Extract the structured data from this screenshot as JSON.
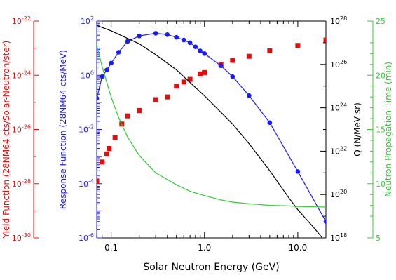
{
  "chart_data": {
    "type": "scatter",
    "xlabel": "Solar Neutron Energy (GeV)",
    "x_axis": {
      "scale": "log",
      "range": [
        0.07,
        20
      ],
      "tick_labels": [
        {
          "value": 0.1,
          "label": "0.1"
        },
        {
          "value": 1.0,
          "label": "1.0"
        },
        {
          "value": 10.0,
          "label": "10.0"
        }
      ]
    },
    "axes": {
      "yield": {
        "label": "Yield Function (28NM64 cts/Solar-Neutron/ster)",
        "scale": "log",
        "range_exp": [
          -30,
          -22
        ],
        "ticks": [
          {
            "exp": -22,
            "label": "10",
            "sup": "-22"
          },
          {
            "exp": -24,
            "label": "10",
            "sup": "-24"
          },
          {
            "exp": -26,
            "label": "10",
            "sup": "-26"
          },
          {
            "exp": -28,
            "label": "10",
            "sup": "-28"
          },
          {
            "exp": -30,
            "label": "10",
            "sup": "-30"
          }
        ],
        "color": "#e01010"
      },
      "response": {
        "label": "Response Function (28NM64 cts/MeV)",
        "scale": "log",
        "range_exp": [
          -6,
          2
        ],
        "ticks": [
          {
            "exp": 2,
            "label": "10",
            "sup": "2"
          },
          {
            "exp": 0,
            "label": "10",
            "sup": "0"
          },
          {
            "exp": -2,
            "label": "10",
            "sup": "-2"
          },
          {
            "exp": -4,
            "label": "10",
            "sup": "-4"
          },
          {
            "exp": -6,
            "label": "10",
            "sup": "-6"
          }
        ],
        "color": "#1a1aff"
      },
      "q": {
        "label": "Q (N/MeV sr)",
        "scale": "log",
        "range_exp": [
          18,
          28
        ],
        "ticks": [
          {
            "exp": 28,
            "label": "10",
            "sup": "28"
          },
          {
            "exp": 26,
            "label": "10",
            "sup": "26"
          },
          {
            "exp": 24,
            "label": "10",
            "sup": "24"
          },
          {
            "exp": 22,
            "label": "10",
            "sup": "22"
          },
          {
            "exp": 20,
            "label": "10",
            "sup": "20"
          },
          {
            "exp": 18,
            "label": "10",
            "sup": "18"
          }
        ],
        "color": "#000000"
      },
      "time": {
        "label": "Neutron Propagation Time (min)",
        "scale": "linear",
        "range": [
          5,
          25
        ],
        "ticks": [
          {
            "value": 25,
            "label": "25"
          },
          {
            "value": 20,
            "label": "20"
          },
          {
            "value": 15,
            "label": "15"
          },
          {
            "value": 10,
            "label": "10"
          },
          {
            "value": 5,
            "label": "5"
          }
        ],
        "color": "#33cc33"
      }
    },
    "series": [
      {
        "axis": "yield",
        "marker": "square",
        "color": "#e01010",
        "x": [
          0.07,
          0.08,
          0.09,
          0.095,
          0.11,
          0.13,
          0.15,
          0.2,
          0.3,
          0.4,
          0.5,
          0.6,
          0.7,
          0.9,
          1.0,
          1.5,
          2.0,
          3.0,
          5.0,
          10.0,
          20.0
        ],
        "log_y": [
          -27.9,
          -27.2,
          -26.9,
          -26.7,
          -26.3,
          -25.8,
          -25.5,
          -25.3,
          -24.9,
          -24.8,
          -24.4,
          -24.25,
          -24.15,
          -23.95,
          -23.9,
          -23.6,
          -23.45,
          -23.3,
          -23.1,
          -22.9,
          -22.7
        ]
      },
      {
        "axis": "response",
        "marker": "circle",
        "line": true,
        "color": "#1a1aff",
        "x": [
          0.07,
          0.08,
          0.09,
          0.1,
          0.12,
          0.15,
          0.2,
          0.3,
          0.4,
          0.5,
          0.6,
          0.7,
          0.8,
          0.9,
          1.0,
          1.5,
          2.0,
          3.0,
          5.0,
          10.0,
          20.0
        ],
        "log_y": [
          -0.85,
          -0.05,
          0.2,
          0.45,
          0.85,
          1.25,
          1.45,
          1.55,
          1.5,
          1.4,
          1.3,
          1.2,
          1.05,
          0.9,
          0.8,
          0.35,
          -0.05,
          -0.75,
          -1.75,
          -3.55,
          -5.4
        ]
      },
      {
        "axis": "q",
        "marker": "none",
        "line": true,
        "color": "#000000",
        "x": [
          0.07,
          0.1,
          0.2,
          0.3,
          0.5,
          1.0,
          2.0,
          3.0,
          5.0,
          8.0,
          10.0,
          15.0,
          20.0
        ],
        "log_y": [
          27.8,
          27.55,
          26.95,
          26.45,
          25.75,
          24.55,
          23.25,
          22.35,
          21.1,
          19.85,
          19.3,
          18.45,
          17.8
        ]
      },
      {
        "axis": "time",
        "marker": "none",
        "line": true,
        "color": "#33cc33",
        "x": [
          0.07,
          0.08,
          0.09,
          0.1,
          0.12,
          0.15,
          0.2,
          0.3,
          0.5,
          0.7,
          1.0,
          1.5,
          2.0,
          3.0,
          5.0,
          8.0,
          10.0,
          20.0
        ],
        "y": [
          22.8,
          20.8,
          19.3,
          18.0,
          16.1,
          14.3,
          12.6,
          11.0,
          9.9,
          9.3,
          8.9,
          8.5,
          8.3,
          8.15,
          8.0,
          7.95,
          7.9,
          7.85
        ]
      }
    ],
    "grid": false,
    "legend": "none"
  }
}
